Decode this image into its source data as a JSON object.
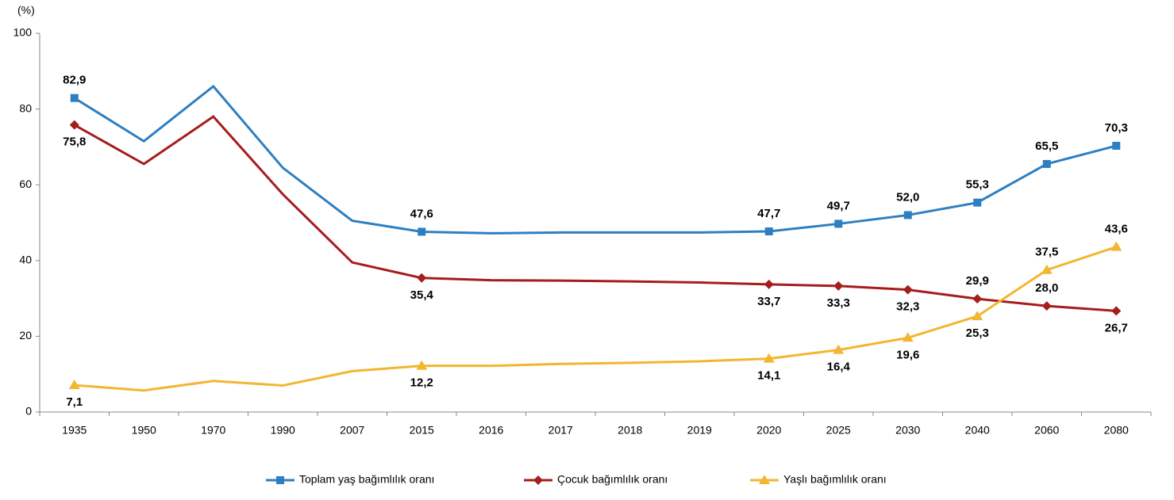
{
  "chart_data": {
    "type": "line",
    "y_unit": "(%)",
    "categories": [
      "1935",
      "1950",
      "1970",
      "1990",
      "2007",
      "2015",
      "2016",
      "2017",
      "2018",
      "2019",
      "2020",
      "2025",
      "2030",
      "2040",
      "2060",
      "2080"
    ],
    "ylim": [
      0,
      100
    ],
    "yticks": [
      0,
      20,
      40,
      60,
      80,
      100
    ],
    "series": [
      {
        "name": "Toplam yaş bağımlılık oranı",
        "color": "#2e7fc1",
        "marker": "square",
        "values": [
          82.9,
          71.5,
          86,
          64.5,
          50.5,
          47.6,
          47.2,
          47.4,
          47.4,
          47.4,
          47.7,
          49.7,
          52.0,
          55.3,
          65.5,
          70.3
        ],
        "value_labels": [
          "82,9",
          null,
          null,
          null,
          null,
          "47,6",
          null,
          null,
          null,
          null,
          "47,7",
          "49,7",
          "52,0",
          "55,3",
          "65,5",
          "70,3"
        ]
      },
      {
        "name": "Çocuk bağımlılık oranı",
        "color": "#a51d1d",
        "marker": "diamond",
        "values": [
          75.8,
          65.5,
          78,
          57.5,
          39.5,
          35.4,
          34.8,
          34.7,
          34.5,
          34.2,
          33.7,
          33.3,
          32.3,
          29.9,
          28.0,
          26.7
        ],
        "value_labels": [
          "75,8",
          null,
          null,
          null,
          null,
          "35,4",
          null,
          null,
          null,
          null,
          "33,7",
          "33,3",
          "32,3",
          "29,9",
          "28,0",
          "26,7"
        ]
      },
      {
        "name": "Yaşlı bağımlılık oranı",
        "color": "#f2b630",
        "marker": "triangle",
        "values": [
          7.1,
          5.7,
          8.2,
          7.0,
          10.8,
          12.2,
          12.2,
          12.7,
          13.0,
          13.4,
          14.1,
          16.4,
          19.6,
          25.3,
          37.5,
          43.6
        ],
        "value_labels": [
          "7,1",
          null,
          null,
          null,
          null,
          "12,2",
          null,
          null,
          null,
          null,
          "14,1",
          "16,4",
          "19,6",
          "25,3",
          "37,5",
          "43,6"
        ]
      }
    ]
  }
}
